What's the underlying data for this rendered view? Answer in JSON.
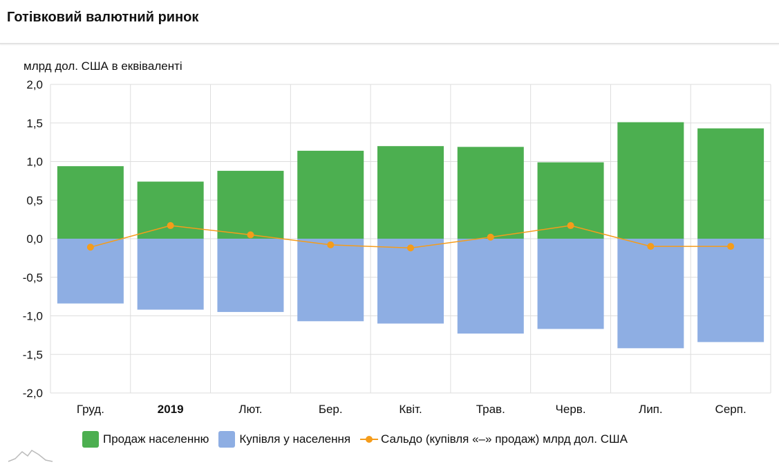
{
  "header": {
    "title": "Готівковий валютний ринок"
  },
  "chart_data": {
    "type": "bar",
    "title": "",
    "ylabel": "млрд дол. США в еквіваленті",
    "xlabel": "",
    "ylim": [
      -2.0,
      2.0
    ],
    "yticks": [
      "2,0",
      "1,5",
      "1,0",
      "0,5",
      "0,0",
      "-0,5",
      "-1,0",
      "-1,5",
      "-2,0"
    ],
    "ytick_values": [
      2.0,
      1.5,
      1.0,
      0.5,
      0.0,
      -0.5,
      -1.0,
      -1.5,
      -2.0
    ],
    "categories": [
      "Груд.",
      "2019",
      "Лют.",
      "Бер.",
      "Квіт.",
      "Трав.",
      "Черв.",
      "Лип.",
      "Серп."
    ],
    "bold_categories": [
      "2019"
    ],
    "grid": true,
    "legend_position": "bottom",
    "series": [
      {
        "name": "Продаж населенню",
        "type": "bar",
        "color": "#4caf50",
        "values": [
          0.94,
          0.74,
          0.88,
          1.14,
          1.2,
          1.19,
          0.99,
          1.51,
          1.43
        ]
      },
      {
        "name": "Купівля у населення",
        "type": "bar",
        "color": "#8eaee3",
        "values": [
          -0.84,
          -0.92,
          -0.95,
          -1.07,
          -1.1,
          -1.23,
          -1.17,
          -1.42,
          -1.34
        ]
      },
      {
        "name": "Сальдо (купівля «–» продаж) млрд дол. США",
        "type": "line",
        "color": "#f59c1a",
        "values": [
          -0.11,
          0.17,
          0.05,
          -0.08,
          -0.12,
          0.02,
          0.17,
          -0.1,
          -0.1
        ]
      }
    ]
  }
}
